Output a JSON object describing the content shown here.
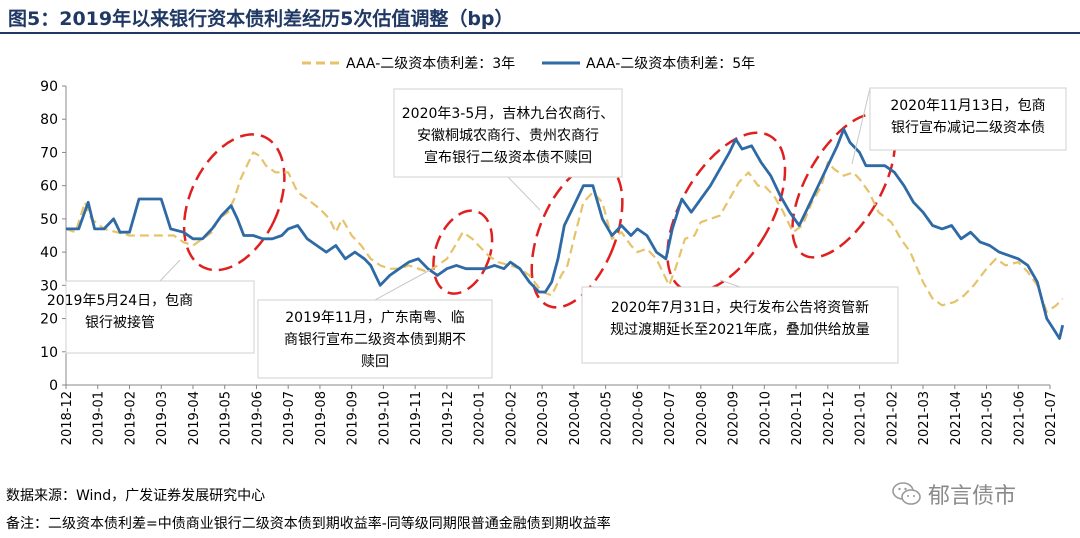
{
  "title": "图5：2019年以来银行资本债利差经历5次估值调整（bp）",
  "chart_data": {
    "type": "line",
    "title": "图5：2019年以来银行资本债利差经历5次估值调整（bp）",
    "ylim": [
      0,
      90
    ],
    "yticks": [
      0,
      10,
      20,
      30,
      40,
      50,
      60,
      70,
      80,
      90
    ],
    "xlabel": "",
    "ylabel": "",
    "legend_position": "top-center",
    "categories": [
      "2018-12",
      "2019-01",
      "2019-02",
      "2019-03",
      "2019-04",
      "2019-05",
      "2019-06",
      "2019-07",
      "2019-08",
      "2019-09",
      "2019-10",
      "2019-11",
      "2019-12",
      "2020-01",
      "2020-02",
      "2020-03",
      "2020-04",
      "2020-05",
      "2020-06",
      "2020-07",
      "2020-08",
      "2020-09",
      "2020-10",
      "2020-11",
      "2020-12",
      "2021-01",
      "2021-02",
      "2021-03",
      "2021-04",
      "2021-05",
      "2021-06",
      "2021-07"
    ],
    "series": [
      {
        "name": "AAA-二级资本债利差：3年",
        "color": "#e6c36b",
        "style": "dashed",
        "points": [
          [
            0,
            47
          ],
          [
            0.3,
            46
          ],
          [
            0.6,
            55
          ],
          [
            0.8,
            50
          ],
          [
            1.2,
            47
          ],
          [
            1.6,
            46
          ],
          [
            2,
            45
          ],
          [
            2.5,
            45
          ],
          [
            3,
            45
          ],
          [
            3.4,
            45
          ],
          [
            3.7,
            43
          ],
          [
            4,
            42
          ],
          [
            4.3,
            44
          ],
          [
            4.6,
            46
          ],
          [
            4.8,
            50
          ],
          [
            5.1,
            52
          ],
          [
            5.3,
            56
          ],
          [
            5.5,
            62
          ],
          [
            5.7,
            66
          ],
          [
            5.9,
            70
          ],
          [
            6.1,
            69
          ],
          [
            6.3,
            66
          ],
          [
            6.6,
            64
          ],
          [
            7,
            64
          ],
          [
            7.3,
            58
          ],
          [
            7.6,
            56
          ],
          [
            8,
            53
          ],
          [
            8.3,
            50
          ],
          [
            8.5,
            46
          ],
          [
            8.7,
            50
          ],
          [
            9,
            45
          ],
          [
            9.3,
            42
          ],
          [
            9.6,
            38
          ],
          [
            9.9,
            36
          ],
          [
            10.2,
            35
          ],
          [
            10.5,
            35
          ],
          [
            10.8,
            36
          ],
          [
            11.1,
            35
          ],
          [
            11.4,
            34
          ],
          [
            11.7,
            36
          ],
          [
            12,
            38
          ],
          [
            12.2,
            41
          ],
          [
            12.5,
            46
          ],
          [
            12.8,
            44
          ],
          [
            13,
            42
          ],
          [
            13.3,
            39
          ],
          [
            13.6,
            37
          ],
          [
            14,
            36
          ],
          [
            14.3,
            35
          ],
          [
            14.6,
            33
          ],
          [
            15,
            28
          ],
          [
            15.3,
            27
          ],
          [
            15.6,
            33
          ],
          [
            15.8,
            36
          ],
          [
            16,
            44
          ],
          [
            16.3,
            55
          ],
          [
            16.6,
            58
          ],
          [
            16.9,
            55
          ],
          [
            17.2,
            44
          ],
          [
            17.5,
            46
          ],
          [
            17.8,
            42
          ],
          [
            18,
            40
          ],
          [
            18.3,
            41
          ],
          [
            18.6,
            38
          ],
          [
            19,
            30
          ],
          [
            19.2,
            35
          ],
          [
            19.5,
            44
          ],
          [
            19.8,
            45
          ],
          [
            20,
            49
          ],
          [
            20.3,
            50
          ],
          [
            20.6,
            51
          ],
          [
            20.9,
            56
          ],
          [
            21.2,
            61
          ],
          [
            21.5,
            64
          ],
          [
            21.8,
            60
          ],
          [
            22,
            60
          ],
          [
            22.3,
            57
          ],
          [
            22.6,
            52
          ],
          [
            22.9,
            46
          ],
          [
            23.2,
            48
          ],
          [
            23.5,
            55
          ],
          [
            23.8,
            60
          ],
          [
            24,
            67
          ],
          [
            24.2,
            65
          ],
          [
            24.5,
            63
          ],
          [
            24.8,
            64
          ],
          [
            25,
            62
          ],
          [
            25.3,
            58
          ],
          [
            25.6,
            52
          ],
          [
            26,
            49
          ],
          [
            26.3,
            44
          ],
          [
            26.6,
            40
          ],
          [
            27,
            31
          ],
          [
            27.3,
            26
          ],
          [
            27.6,
            24
          ],
          [
            28,
            25
          ],
          [
            28.3,
            27
          ],
          [
            28.6,
            30
          ],
          [
            29,
            35
          ],
          [
            29.3,
            38
          ],
          [
            29.6,
            36
          ],
          [
            30,
            37
          ],
          [
            30.3,
            34
          ],
          [
            30.6,
            30
          ],
          [
            30.9,
            22
          ],
          [
            31.2,
            24
          ],
          [
            31.4,
            26
          ]
        ]
      },
      {
        "name": "AAA-二级资本债利差：5年",
        "color": "#2e6aa5",
        "style": "solid",
        "points": [
          [
            0,
            47
          ],
          [
            0.4,
            47
          ],
          [
            0.7,
            55
          ],
          [
            0.9,
            47
          ],
          [
            1.2,
            47
          ],
          [
            1.5,
            50
          ],
          [
            1.7,
            46
          ],
          [
            2,
            46
          ],
          [
            2.3,
            56
          ],
          [
            2.6,
            56
          ],
          [
            3,
            56
          ],
          [
            3.3,
            47
          ],
          [
            3.7,
            46
          ],
          [
            4,
            44
          ],
          [
            4.3,
            44
          ],
          [
            4.6,
            47
          ],
          [
            4.9,
            51
          ],
          [
            5.2,
            54
          ],
          [
            5.4,
            50
          ],
          [
            5.6,
            45
          ],
          [
            5.9,
            45
          ],
          [
            6.2,
            44
          ],
          [
            6.5,
            44
          ],
          [
            6.8,
            45
          ],
          [
            7,
            47
          ],
          [
            7.3,
            48
          ],
          [
            7.6,
            44
          ],
          [
            7.9,
            42
          ],
          [
            8.2,
            40
          ],
          [
            8.5,
            42
          ],
          [
            8.8,
            38
          ],
          [
            9.1,
            40
          ],
          [
            9.4,
            38
          ],
          [
            9.6,
            36
          ],
          [
            9.9,
            30
          ],
          [
            10.2,
            33
          ],
          [
            10.5,
            35
          ],
          [
            10.8,
            37
          ],
          [
            11.1,
            38
          ],
          [
            11.4,
            35
          ],
          [
            11.7,
            33
          ],
          [
            12,
            35
          ],
          [
            12.3,
            36
          ],
          [
            12.6,
            35
          ],
          [
            12.9,
            35
          ],
          [
            13.2,
            35
          ],
          [
            13.5,
            36
          ],
          [
            13.8,
            35
          ],
          [
            14,
            37
          ],
          [
            14.3,
            35
          ],
          [
            14.6,
            31
          ],
          [
            14.9,
            28
          ],
          [
            15.1,
            28
          ],
          [
            15.3,
            31
          ],
          [
            15.5,
            38
          ],
          [
            15.7,
            48
          ],
          [
            16,
            54
          ],
          [
            16.3,
            60
          ],
          [
            16.6,
            60
          ],
          [
            16.9,
            50
          ],
          [
            17.2,
            45
          ],
          [
            17.5,
            48
          ],
          [
            17.8,
            45
          ],
          [
            18,
            47
          ],
          [
            18.3,
            45
          ],
          [
            18.6,
            40
          ],
          [
            18.9,
            38
          ],
          [
            19.1,
            47
          ],
          [
            19.4,
            56
          ],
          [
            19.7,
            52
          ],
          [
            20,
            56
          ],
          [
            20.3,
            60
          ],
          [
            20.6,
            65
          ],
          [
            20.9,
            70
          ],
          [
            21.1,
            74
          ],
          [
            21.3,
            71
          ],
          [
            21.6,
            72
          ],
          [
            21.9,
            67
          ],
          [
            22.2,
            63
          ],
          [
            22.5,
            57
          ],
          [
            22.8,
            52
          ],
          [
            23.1,
            48
          ],
          [
            23.4,
            54
          ],
          [
            23.7,
            60
          ],
          [
            24,
            66
          ],
          [
            24.3,
            72
          ],
          [
            24.5,
            77
          ],
          [
            24.7,
            73
          ],
          [
            25,
            70
          ],
          [
            25.2,
            66
          ],
          [
            25.5,
            66
          ],
          [
            25.8,
            66
          ],
          [
            26.1,
            64
          ],
          [
            26.4,
            60
          ],
          [
            26.7,
            55
          ],
          [
            27,
            52
          ],
          [
            27.3,
            48
          ],
          [
            27.6,
            47
          ],
          [
            27.9,
            48
          ],
          [
            28.2,
            44
          ],
          [
            28.5,
            46
          ],
          [
            28.8,
            43
          ],
          [
            29.1,
            42
          ],
          [
            29.4,
            40
          ],
          [
            29.7,
            39
          ],
          [
            30,
            38
          ],
          [
            30.3,
            36
          ],
          [
            30.6,
            31
          ],
          [
            30.9,
            20
          ],
          [
            31.1,
            17
          ],
          [
            31.3,
            14
          ],
          [
            31.4,
            18
          ]
        ]
      }
    ]
  },
  "annotations": [
    {
      "id": "a1",
      "lines": [
        "2019年5月24日，包商",
        "银行被接管"
      ]
    },
    {
      "id": "a2",
      "lines": [
        "2019年11月，广东南粤、临",
        "商银行宣布二级资本债到期不",
        "赎回"
      ]
    },
    {
      "id": "a3",
      "lines": [
        "2020年3-5月，吉林九台农商行、",
        "安徽桐城农商行、贵州农商行",
        "宣布银行二级资本债不赎回"
      ]
    },
    {
      "id": "a4",
      "lines": [
        "2020年7月31日，央行发布公告将资管新",
        "规过渡期延长至2021年底，叠加供给放量"
      ]
    },
    {
      "id": "a5",
      "lines": [
        "2020年11月13日，包商",
        "银行宣布减记二级资本债"
      ]
    }
  ],
  "source_note": "数据来源：Wind，广发证券发展研究中心",
  "remark_note": "备注：二级资本债利差=中债商业银行二级资本债到期收益率-同等级同期限普通金融债到期收益率",
  "watermark": "郁言债市",
  "colors": {
    "title": "#1f3864",
    "series3y": "#e6c36b",
    "series5y": "#2e6aa5",
    "ellipse": "#e02020"
  }
}
